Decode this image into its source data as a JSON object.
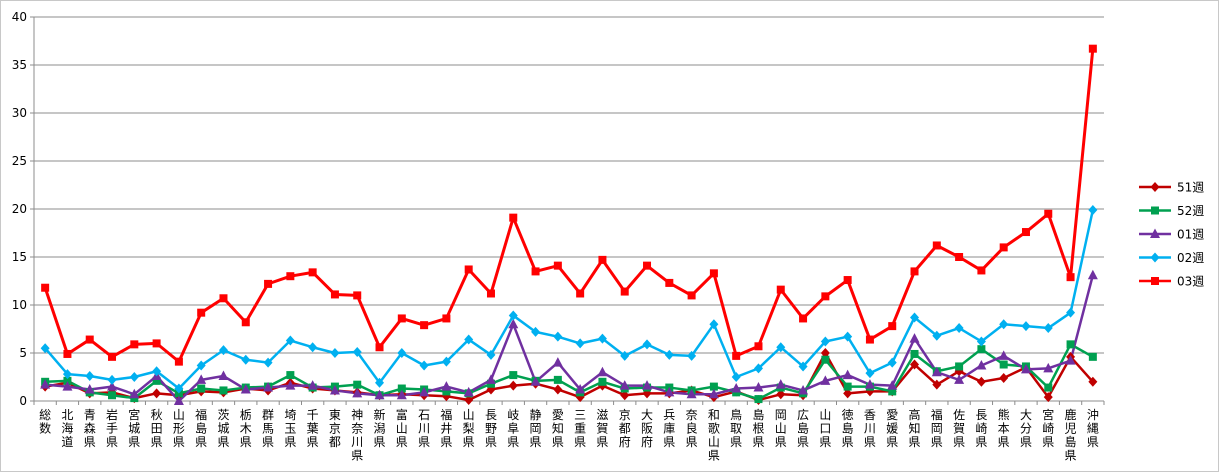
{
  "chart_data": {
    "type": "line",
    "categories": [
      "総数",
      "北海道",
      "青森県",
      "岩手県",
      "宮城県",
      "秋田県",
      "山形県",
      "福島県",
      "茨城県",
      "栃木県",
      "群馬県",
      "埼玉県",
      "千葉県",
      "東京都",
      "神奈川県",
      "新潟県",
      "富山県",
      "石川県",
      "福井県",
      "山梨県",
      "長野県",
      "岐阜県",
      "静岡県",
      "愛知県",
      "三重県",
      "滋賀県",
      "京都府",
      "大阪府",
      "兵庫県",
      "奈良県",
      "和歌山県",
      "鳥取県",
      "島根県",
      "岡山県",
      "広島県",
      "山口県",
      "徳島県",
      "香川県",
      "愛媛県",
      "高知県",
      "福岡県",
      "佐賀県",
      "長崎県",
      "熊本県",
      "大分県",
      "宮崎県",
      "鹿児島県",
      "沖縄県"
    ],
    "ylim": [
      0,
      40
    ],
    "yticks": [
      "0",
      "5",
      "10",
      "15",
      "20",
      "25",
      "30",
      "35",
      "40"
    ],
    "grid": "horizontal",
    "legend_position": "right",
    "series": [
      {
        "name": "51週",
        "color": "#c00000",
        "marker": "diamond",
        "values": [
          1.5,
          1.9,
          0.8,
          0.9,
          0.3,
          0.8,
          0.6,
          1.0,
          0.9,
          1.3,
          1.1,
          1.9,
          1.3,
          1.1,
          0.9,
          0.6,
          0.7,
          0.6,
          0.5,
          0.1,
          1.2,
          1.6,
          1.8,
          1.2,
          0.4,
          1.6,
          0.6,
          0.8,
          0.8,
          1.1,
          0.4,
          1.0,
          0.1,
          0.7,
          0.6,
          5.0,
          0.8,
          1.0,
          1.0,
          3.8,
          1.7,
          3.1,
          2.0,
          2.4,
          3.5,
          0.4,
          4.6,
          2.0
        ]
      },
      {
        "name": "52週",
        "color": "#00a050",
        "marker": "square",
        "values": [
          2.0,
          2.1,
          0.9,
          0.6,
          0.3,
          2.1,
          0.8,
          1.3,
          1.1,
          1.4,
          1.5,
          2.7,
          1.4,
          1.5,
          1.7,
          0.6,
          1.3,
          1.2,
          1.0,
          0.8,
          1.8,
          2.7,
          2.1,
          2.2,
          0.9,
          2.0,
          1.3,
          1.4,
          1.4,
          1.1,
          1.5,
          0.9,
          0.2,
          1.4,
          0.8,
          4.3,
          1.5,
          1.5,
          1.0,
          4.9,
          3.1,
          3.6,
          5.4,
          3.8,
          3.6,
          1.4,
          5.9,
          4.6
        ]
      },
      {
        "name": "01週",
        "color": "#7030a0",
        "marker": "triangle",
        "values": [
          1.7,
          1.5,
          1.2,
          1.5,
          0.7,
          2.6,
          0.0,
          2.2,
          2.6,
          1.2,
          1.4,
          1.6,
          1.6,
          1.1,
          0.8,
          0.6,
          0.6,
          0.9,
          1.5,
          0.9,
          2.2,
          8.0,
          2.0,
          4.0,
          1.2,
          3.0,
          1.6,
          1.6,
          0.9,
          0.7,
          0.7,
          1.3,
          1.4,
          1.7,
          1.1,
          2.1,
          2.7,
          1.7,
          1.6,
          6.5,
          3.0,
          2.2,
          3.7,
          4.7,
          3.3,
          3.4,
          4.2,
          13.1
        ]
      },
      {
        "name": "02週",
        "color": "#00b0f0",
        "marker": "diamond",
        "values": [
          5.5,
          2.8,
          2.6,
          2.2,
          2.5,
          3.1,
          1.3,
          3.7,
          5.3,
          4.3,
          4.0,
          6.3,
          5.6,
          5.0,
          5.1,
          1.9,
          5.0,
          3.7,
          4.1,
          6.4,
          4.8,
          8.9,
          7.2,
          6.7,
          6.0,
          6.5,
          4.7,
          5.9,
          4.8,
          4.7,
          8.0,
          2.5,
          3.4,
          5.6,
          3.6,
          6.2,
          6.7,
          2.9,
          4.0,
          8.7,
          6.8,
          7.6,
          6.2,
          8.0,
          7.8,
          7.6,
          9.2,
          19.9
        ]
      },
      {
        "name": "03週",
        "color": "#ff0000",
        "marker": "square",
        "values": [
          11.8,
          4.9,
          6.4,
          4.6,
          5.9,
          6.0,
          4.1,
          9.2,
          10.7,
          8.2,
          12.2,
          13.0,
          13.4,
          11.1,
          11.0,
          5.6,
          8.6,
          7.9,
          8.6,
          13.7,
          11.2,
          19.1,
          13.5,
          14.1,
          11.2,
          14.7,
          11.4,
          14.1,
          12.3,
          11.0,
          13.3,
          4.7,
          5.7,
          11.6,
          8.6,
          10.9,
          12.6,
          6.4,
          7.8,
          13.5,
          16.2,
          15.0,
          13.6,
          16.0,
          17.6,
          19.5,
          12.9,
          36.7
        ]
      }
    ]
  }
}
